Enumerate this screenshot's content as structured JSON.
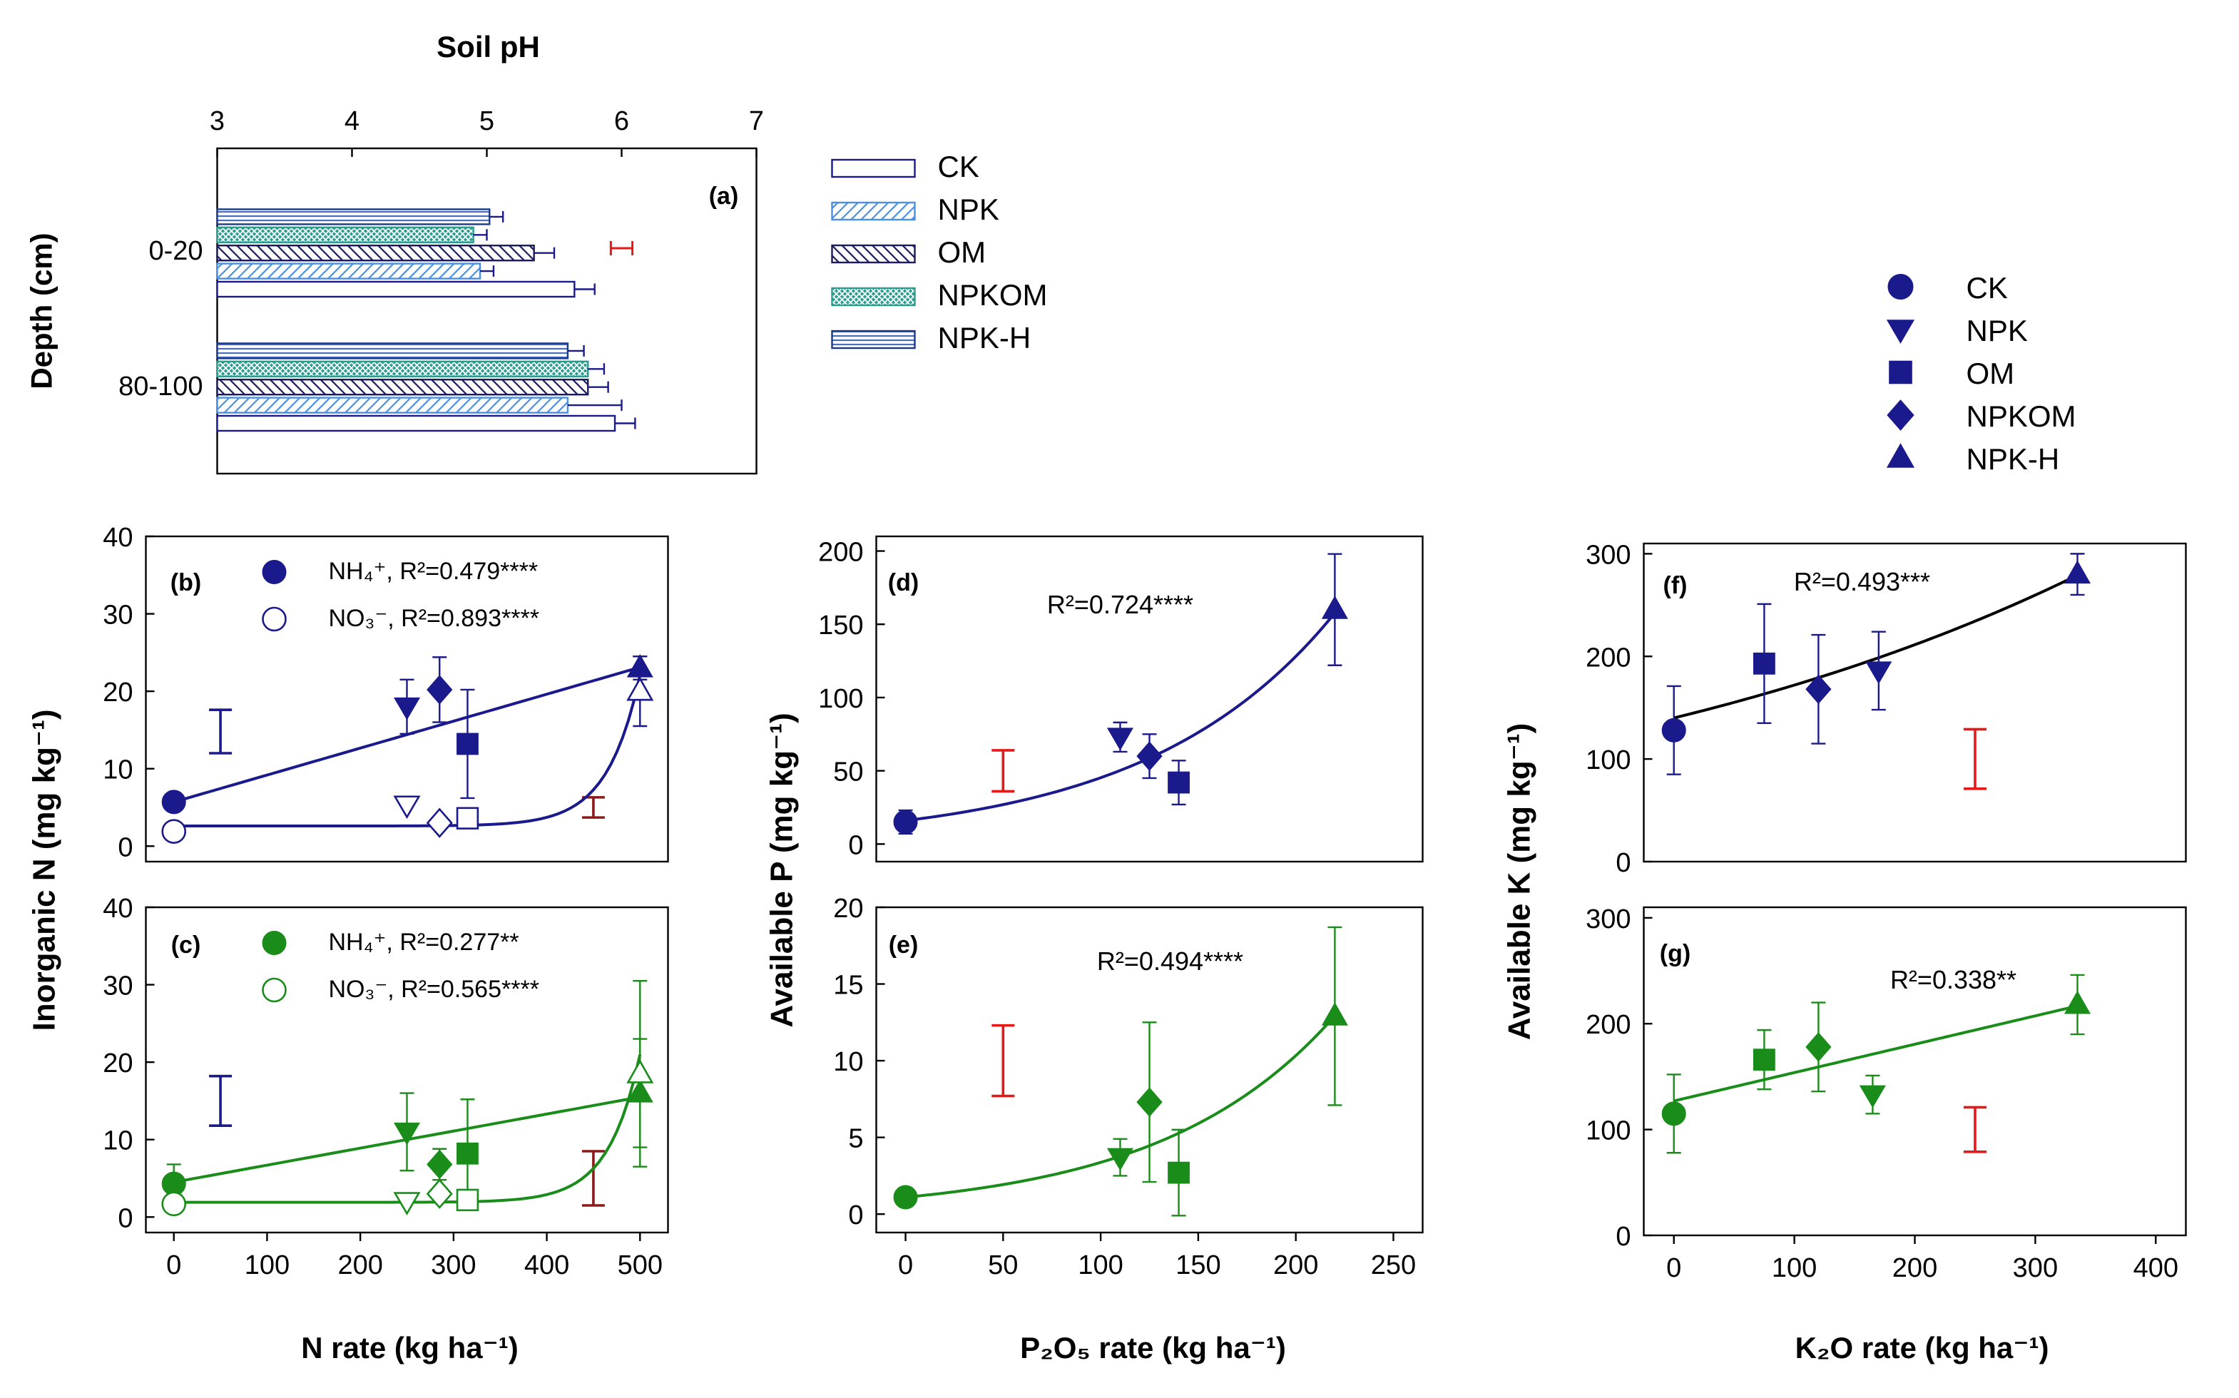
{
  "colors": {
    "navy": "#1a1a8c",
    "green": "#1a8c1a",
    "red": "#e61919",
    "darkred": "#8c1a1a",
    "blue_light": "#4a90e2",
    "teal": "#2a9d8f",
    "black": "#000000"
  },
  "panel_a": {
    "title": "Soil pH",
    "label": "(a)",
    "ylabel": "Depth (cm)",
    "x_ticks": [
      "3",
      "4",
      "5",
      "6",
      "7"
    ],
    "depths": [
      "0-20",
      "80-100"
    ],
    "legend": [
      "CK",
      "NPK",
      "OM",
      "NPKOM",
      "NPK-H"
    ]
  },
  "legend_right": [
    "CK",
    "NPK",
    "OM",
    "NPKOM",
    "NPK-H"
  ],
  "panel_b": {
    "label": "(b)",
    "nh4_legend": "NH₄⁺, R²=0.479****",
    "no3_legend": "NO₃⁻, R²=0.893****",
    "y_ticks": [
      "0",
      "10",
      "20",
      "30",
      "40"
    ]
  },
  "panel_c": {
    "label": "(c)",
    "nh4_legend": "NH₄⁺, R²=0.277**",
    "no3_legend": "NO₃⁻, R²=0.565****",
    "y_ticks": [
      "0",
      "10",
      "20",
      "30",
      "40"
    ],
    "x_ticks": [
      "0",
      "100",
      "200",
      "300",
      "400",
      "500"
    ],
    "xlabel": "N rate (kg ha⁻¹)"
  },
  "inorganic_ylabel": "Inorganic N (mg kg⁻¹)",
  "panel_d": {
    "label": "(d)",
    "r2": "R²=0.724****",
    "y_ticks": [
      "0",
      "50",
      "100",
      "150",
      "200"
    ]
  },
  "panel_e": {
    "label": "(e)",
    "r2": "R²=0.494****",
    "y_ticks": [
      "0",
      "5",
      "10",
      "15",
      "20"
    ],
    "x_ticks": [
      "0",
      "50",
      "100",
      "150",
      "200",
      "250"
    ],
    "xlabel": "P₂O₅ rate (kg ha⁻¹)"
  },
  "availP_ylabel": "Available P (mg kg⁻¹)",
  "panel_f": {
    "label": "(f)",
    "r2": "R²=0.493***",
    "y_ticks": [
      "0",
      "100",
      "200",
      "300"
    ]
  },
  "panel_g": {
    "label": "(g)",
    "r2": "R²=0.338**",
    "y_ticks": [
      "0",
      "100",
      "200",
      "300"
    ],
    "x_ticks": [
      "0",
      "100",
      "200",
      "300",
      "400"
    ],
    "xlabel": "K₂O rate (kg ha⁻¹)"
  },
  "availK_ylabel": "Available K (mg kg⁻¹)",
  "chart_data": [
    {
      "id": "a",
      "type": "bar",
      "orientation": "horizontal",
      "title": "Soil pH",
      "xlabel": "Soil pH",
      "ylabel": "Depth (cm)",
      "xlim": [
        3,
        7
      ],
      "categories": [
        "0-20",
        "80-100"
      ],
      "series": [
        {
          "name": "CK",
          "values": [
            5.65,
            5.95
          ],
          "errors": [
            0.15,
            0.15
          ]
        },
        {
          "name": "NPK",
          "values": [
            4.95,
            5.6
          ],
          "errors": [
            0.1,
            0.4
          ]
        },
        {
          "name": "OM",
          "values": [
            5.35,
            5.75
          ],
          "errors": [
            0.15,
            0.15
          ]
        },
        {
          "name": "NPKOM",
          "values": [
            4.9,
            5.75
          ],
          "errors": [
            0.1,
            0.12
          ]
        },
        {
          "name": "NPK-H",
          "values": [
            5.02,
            5.6
          ],
          "errors": [
            0.1,
            0.12
          ]
        }
      ],
      "lsd": {
        "center": 6.0,
        "half": 0.08,
        "depth": "0-20"
      }
    },
    {
      "id": "b",
      "type": "scatter",
      "xlim": [
        -30,
        530
      ],
      "ylim": [
        -2,
        40
      ],
      "series": [
        {
          "name": "NH4+",
          "filled": true,
          "color": "navy",
          "points": [
            {
              "t": "CK",
              "x": 0,
              "y": 5.7,
              "e": 0
            },
            {
              "t": "NPK",
              "x": 250,
              "y": 18,
              "e": 3.5
            },
            {
              "t": "NPKOM",
              "x": 285,
              "y": 20.2,
              "e": 4.2
            },
            {
              "t": "OM",
              "x": 315,
              "y": 13.2,
              "e": 7
            },
            {
              "t": "NPK-H",
              "x": 500,
              "y": 23,
              "e": 1.5
            }
          ],
          "fit": "linear",
          "fit_params": [
            5.7,
            0.0348
          ]
        },
        {
          "name": "NO3-",
          "filled": false,
          "color": "navy",
          "points": [
            {
              "t": "CK",
              "x": 0,
              "y": 1.9,
              "e": 0
            },
            {
              "t": "NPK",
              "x": 250,
              "y": 5.3,
              "e": 0
            },
            {
              "t": "NPKOM",
              "x": 285,
              "y": 3.0,
              "e": 0
            },
            {
              "t": "OM",
              "x": 315,
              "y": 3.6,
              "e": 0
            },
            {
              "t": "NPK-H",
              "x": 500,
              "y": 20,
              "e": 4.5
            }
          ],
          "fit": "exp",
          "fit_params": [
            2.6,
            1.2e-05,
            0.0286
          ]
        }
      ],
      "lsd": [
        {
          "x": 50,
          "y": 14.8,
          "h": 2.8,
          "color": "navy"
        },
        {
          "x": 450,
          "y": 5,
          "h": 1.3,
          "color": "darkred"
        }
      ]
    },
    {
      "id": "c",
      "type": "scatter",
      "xlim": [
        -30,
        530
      ],
      "ylim": [
        -2,
        40
      ],
      "xlabel": "N rate (kg ha-1)",
      "series": [
        {
          "name": "NH4+",
          "filled": true,
          "color": "green",
          "points": [
            {
              "t": "CK",
              "x": 0,
              "y": 4.3,
              "e": 2.5
            },
            {
              "t": "NPK",
              "x": 250,
              "y": 11,
              "e": 5
            },
            {
              "t": "NPKOM",
              "x": 285,
              "y": 6.8,
              "e": 2
            },
            {
              "t": "OM",
              "x": 315,
              "y": 8.2,
              "e": 7
            },
            {
              "t": "NPK-H",
              "x": 500,
              "y": 16,
              "e": 7
            }
          ],
          "fit": "linear",
          "fit_params": [
            4.5,
            0.022
          ]
        },
        {
          "name": "NO3-",
          "filled": false,
          "color": "green",
          "points": [
            {
              "t": "CK",
              "x": 0,
              "y": 1.7,
              "e": 0
            },
            {
              "t": "NPK",
              "x": 250,
              "y": 2,
              "e": 0
            },
            {
              "t": "NPKOM",
              "x": 285,
              "y": 3,
              "e": 0
            },
            {
              "t": "OM",
              "x": 315,
              "y": 2.2,
              "e": 0
            },
            {
              "t": "NPK-H",
              "x": 500,
              "y": 18.5,
              "e": 12
            }
          ],
          "fit": "exp",
          "fit_params": [
            1.9,
            7.5e-06,
            0.0295
          ]
        }
      ],
      "lsd": [
        {
          "x": 50,
          "y": 15,
          "h": 3.2,
          "color": "navy"
        },
        {
          "x": 450,
          "y": 5,
          "h": 3.5,
          "color": "darkred"
        }
      ]
    },
    {
      "id": "d",
      "type": "scatter",
      "xlim": [
        -15,
        265
      ],
      "ylim": [
        -12,
        210
      ],
      "points": [
        {
          "t": "CK",
          "x": 0,
          "y": 15,
          "e": 8
        },
        {
          "t": "NPK",
          "x": 110,
          "y": 73,
          "e": 10
        },
        {
          "t": "NPKOM",
          "x": 125,
          "y": 60,
          "e": 15
        },
        {
          "t": "OM",
          "x": 140,
          "y": 42,
          "e": 15
        },
        {
          "t": "NPK-H",
          "x": 220,
          "y": 160,
          "e": 38
        }
      ],
      "color": "navy",
      "fit": "exp",
      "fit_params": [
        16,
        0.0104
      ],
      "lsd": [
        {
          "x": 50,
          "y": 50,
          "h": 14,
          "color": "red"
        }
      ]
    },
    {
      "id": "e",
      "type": "scatter",
      "xlim": [
        -15,
        265
      ],
      "ylim": [
        -1.2,
        20
      ],
      "xlabel": "P2O5 rate (kg ha-1)",
      "points": [
        {
          "t": "CK",
          "x": 0,
          "y": 1.1,
          "e": 0.6
        },
        {
          "t": "NPK",
          "x": 110,
          "y": 3.7,
          "e": 1.2
        },
        {
          "t": "NPKOM",
          "x": 125,
          "y": 7.3,
          "e": 5.2
        },
        {
          "t": "OM",
          "x": 140,
          "y": 2.7,
          "e": 2.8
        },
        {
          "t": "NPK-H",
          "x": 220,
          "y": 12.9,
          "e": 5.8
        }
      ],
      "color": "green",
      "fit": "exp",
      "fit_params": [
        1.1,
        0.0112
      ],
      "lsd": [
        {
          "x": 50,
          "y": 10,
          "h": 2.3,
          "color": "red"
        }
      ]
    },
    {
      "id": "f",
      "type": "scatter",
      "xlim": [
        -25,
        425
      ],
      "ylim": [
        0,
        310
      ],
      "points": [
        {
          "t": "CK",
          "x": 0,
          "y": 128,
          "e": 43
        },
        {
          "t": "OM",
          "x": 75,
          "y": 193,
          "e": 58
        },
        {
          "t": "NPKOM",
          "x": 120,
          "y": 168,
          "e": 53
        },
        {
          "t": "NPK",
          "x": 170,
          "y": 186,
          "e": 38
        },
        {
          "t": "NPK-H",
          "x": 335,
          "y": 280,
          "e": 20
        }
      ],
      "color": "navy",
      "fit": "exp",
      "fit_params": [
        140,
        0.00206
      ],
      "lsd": [
        {
          "x": 250,
          "y": 100,
          "h": 29,
          "color": "red"
        }
      ]
    },
    {
      "id": "g",
      "type": "scatter",
      "xlim": [
        -25,
        425
      ],
      "ylim": [
        0,
        310
      ],
      "xlabel": "K2O rate (kg ha-1)",
      "points": [
        {
          "t": "CK",
          "x": 0,
          "y": 115,
          "e": 37
        },
        {
          "t": "OM",
          "x": 75,
          "y": 166,
          "e": 28
        },
        {
          "t": "NPKOM",
          "x": 120,
          "y": 178,
          "e": 42
        },
        {
          "t": "NPK",
          "x": 165,
          "y": 133,
          "e": 18
        },
        {
          "t": "NPK-H",
          "x": 335,
          "y": 218,
          "e": 28
        }
      ],
      "color": "green",
      "fit": "linear",
      "fit_params": [
        127,
        0.268
      ],
      "lsd": [
        {
          "x": 250,
          "y": 100,
          "h": 21,
          "color": "red"
        }
      ]
    }
  ]
}
